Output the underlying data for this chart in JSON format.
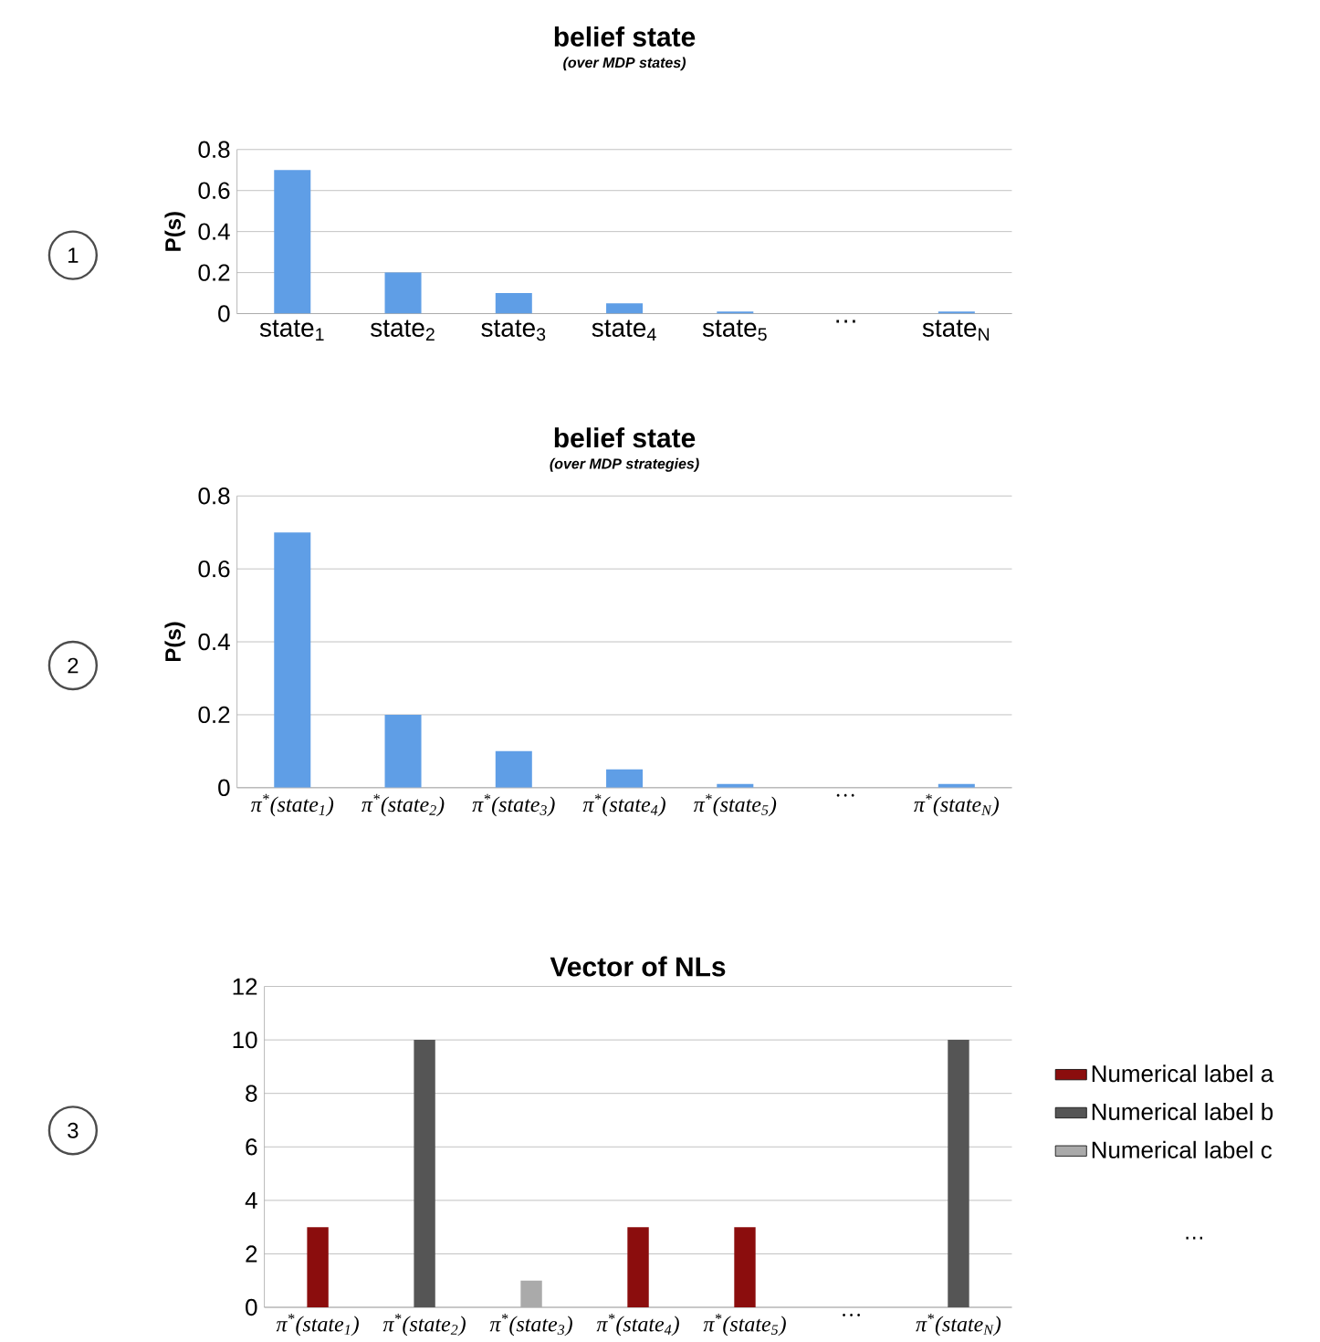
{
  "chart_data": [
    {
      "type": "bar",
      "title": "belief state",
      "subtitle": "(over MDP states)",
      "ylabel": "P(s)",
      "annotations": [
        "1"
      ],
      "categories": [
        "state$_{1}$",
        "state$_{2}$",
        "state$_{3}$",
        "state$_{4}$",
        "state$_{5}$",
        "…",
        "state$_{N}$"
      ],
      "values": [
        0.7,
        0.2,
        0.1,
        0.05,
        0.01,
        null,
        0.01
      ],
      "color": "#5f9ee6",
      "ylim": [
        0,
        0.8
      ],
      "yticks": [
        0,
        0.2,
        0.4,
        0.6,
        0.8
      ],
      "grid": "y"
    },
    {
      "type": "bar",
      "title": "belief state",
      "subtitle": "(over MDP strategies)",
      "ylabel": "P(s)",
      "annotations": [
        "2"
      ],
      "categories": [
        "π$^{*}$(state$_{1}$)",
        "π$^{*}$(state$_{2}$)",
        "π$^{*}$(state$_{3}$)",
        "π$^{*}$(state$_{4}$)",
        "π$^{*}$(state$_{5}$)",
        "…",
        "π$^{*}$(state$_{N}$)"
      ],
      "values": [
        0.7,
        0.2,
        0.1,
        0.05,
        0.01,
        null,
        0.01
      ],
      "color": "#5f9ee6",
      "ylim": [
        0,
        0.8
      ],
      "yticks": [
        0,
        0.2,
        0.4,
        0.6,
        0.8
      ],
      "grid": "y"
    },
    {
      "type": "bar",
      "title": "Vector of NLs",
      "annotations": [
        "3",
        "…"
      ],
      "categories": [
        "π$^{*}$(state$_{1}$)",
        "π$^{*}$(state$_{2}$)",
        "π$^{*}$(state$_{3}$)",
        "π$^{*}$(state$_{4}$)",
        "π$^{*}$(state$_{5}$)",
        "…",
        "π$^{*}$(state$_{N}$)"
      ],
      "series": [
        {
          "name": "Numerical label a",
          "color": "#8b0d0d",
          "values": [
            3,
            null,
            null,
            3,
            3,
            null,
            null
          ]
        },
        {
          "name": "Numerical label b",
          "color": "#555555",
          "values": [
            null,
            10,
            null,
            null,
            null,
            null,
            10
          ]
        },
        {
          "name": "Numerical label c",
          "color": "#aaaaaa",
          "values": [
            null,
            null,
            1,
            null,
            null,
            null,
            null
          ]
        }
      ],
      "ylim": [
        0,
        12
      ],
      "yticks": [
        0,
        2,
        4,
        6,
        8,
        10,
        12
      ],
      "grid": "y",
      "legend": "right"
    }
  ]
}
